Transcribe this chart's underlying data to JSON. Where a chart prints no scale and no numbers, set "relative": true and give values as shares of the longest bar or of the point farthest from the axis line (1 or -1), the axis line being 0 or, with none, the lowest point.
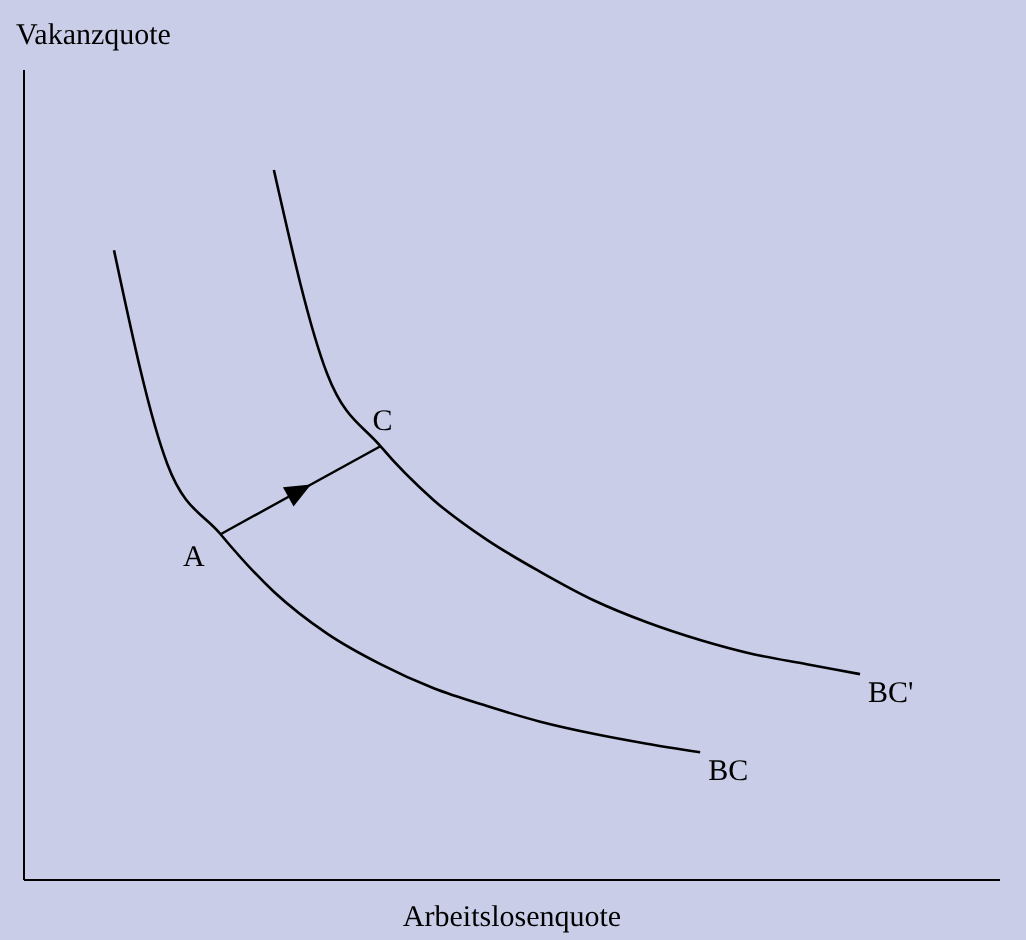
{
  "chart_data": {
    "type": "line",
    "relative": true,
    "xlabel": "Arbeitslosenquote",
    "ylabel": "Vakanzquote",
    "legend": false,
    "marker": "none",
    "line_style": "solid",
    "categories": [
      null,
      null,
      null,
      null,
      null,
      null,
      null,
      null,
      null,
      null,
      null,
      null,
      null,
      null,
      null
    ],
    "series": [
      {
        "name": "BC",
        "color": "#000000",
        "values": [
          0.887,
          0.586,
          0.487,
          0.406,
          0.347,
          0.304,
          0.27,
          0.245,
          0.223,
          0.206,
          0.192,
          0.18,
          null,
          null,
          null
        ]
      },
      {
        "name": "BC'",
        "color": "#000000",
        "values": [
          null,
          null,
          null,
          1.0,
          0.713,
          0.611,
          0.535,
          0.479,
          0.434,
          0.394,
          0.363,
          0.338,
          0.318,
          0.304,
          0.29
        ]
      }
    ],
    "annotations": [
      "A",
      "C"
    ]
  }
}
